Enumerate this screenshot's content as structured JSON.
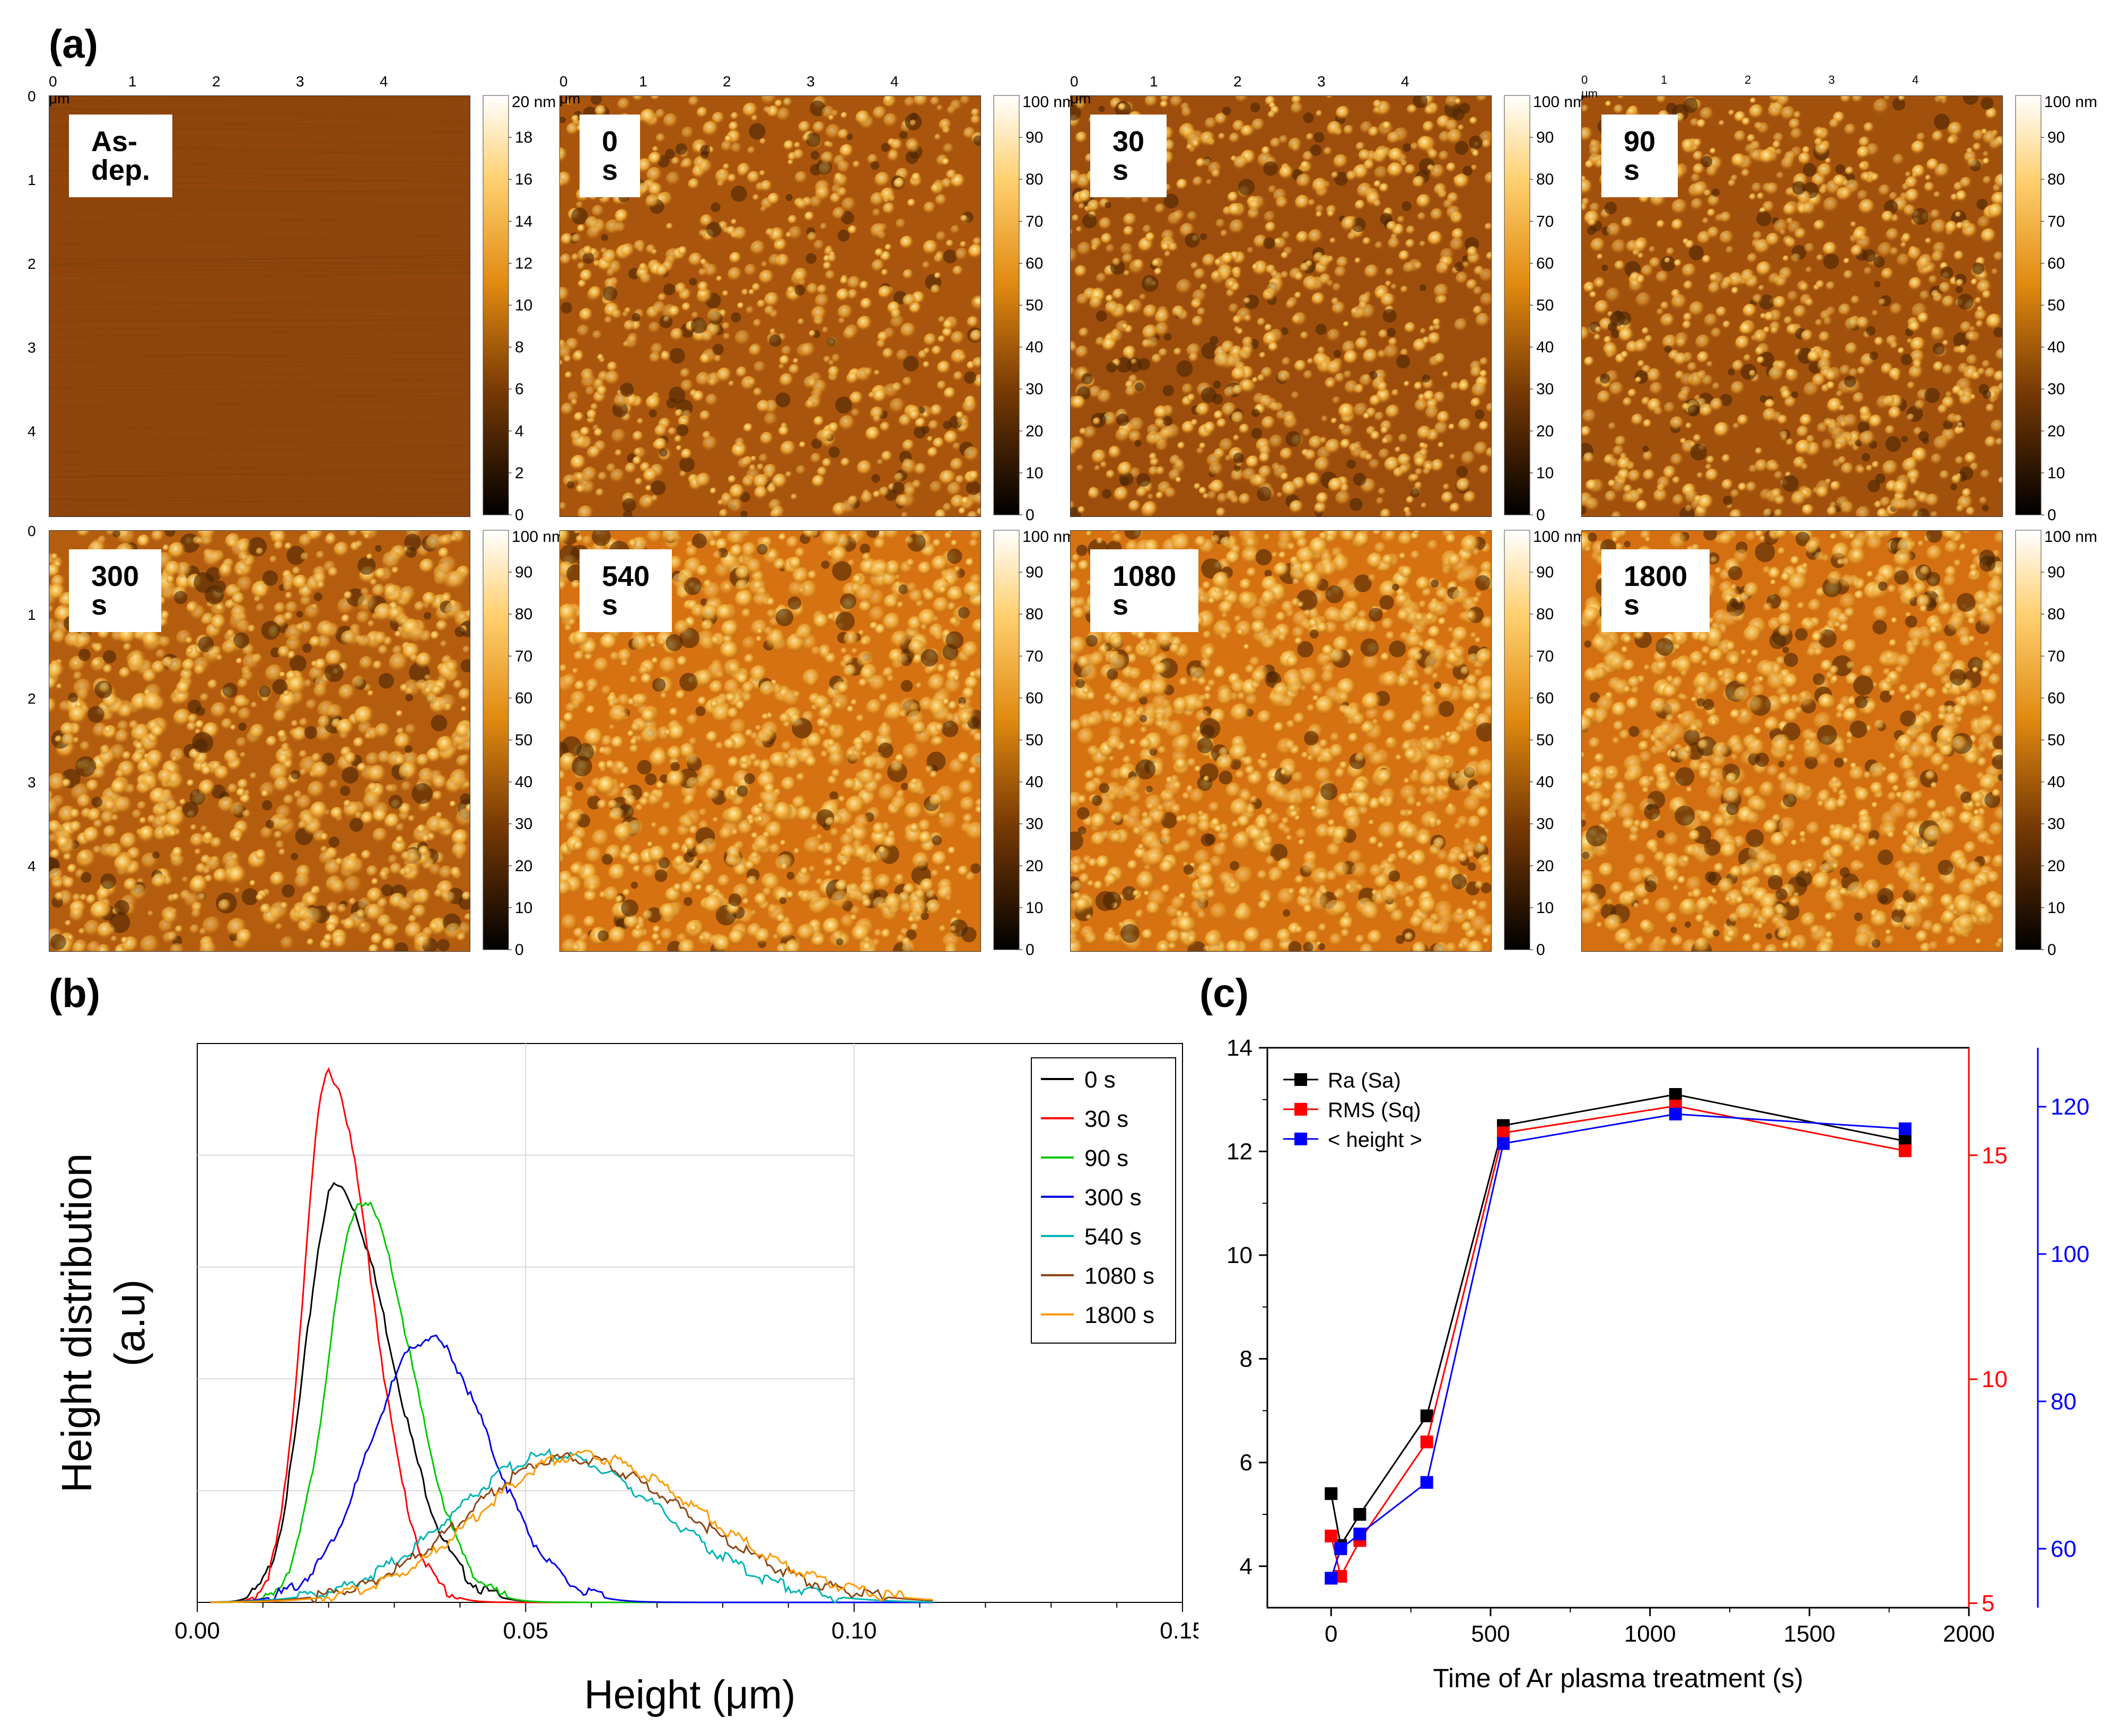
{
  "panel_labels": {
    "a": "(a)",
    "b": "(b)",
    "c": "(c)"
  },
  "afm": {
    "images": [
      {
        "label": "As-dep.",
        "scale_max_nm": 20,
        "scale_ticks": [
          0,
          2,
          4,
          6,
          8,
          10,
          12,
          14,
          16,
          18
        ],
        "unit": "20 nm",
        "brightness": 0.28,
        "grain": 0.05
      },
      {
        "label": "0 s",
        "scale_max_nm": 100,
        "scale_ticks": [
          0,
          10,
          20,
          30,
          40,
          50,
          60,
          70,
          80,
          90
        ],
        "unit": "100 nm",
        "brightness": 0.42,
        "grain": 0.5
      },
      {
        "label": "30 s",
        "scale_max_nm": 100,
        "scale_ticks": [
          0,
          10,
          20,
          30,
          40,
          50,
          60,
          70,
          80,
          90
        ],
        "unit": "100 nm",
        "brightness": 0.36,
        "grain": 0.55
      },
      {
        "label": "90 s",
        "scale_max_nm": 100,
        "scale_ticks": [
          0,
          10,
          20,
          30,
          40,
          50,
          60,
          70,
          80,
          90
        ],
        "unit": "100 nm",
        "brightness": 0.38,
        "grain": 0.6
      },
      {
        "label": "300 s",
        "scale_max_nm": 100,
        "scale_ticks": [
          0,
          10,
          20,
          30,
          40,
          50,
          60,
          70,
          80,
          90
        ],
        "unit": "100 nm",
        "brightness": 0.48,
        "grain": 0.8
      },
      {
        "label": "540 s",
        "scale_max_nm": 100,
        "scale_ticks": [
          0,
          10,
          20,
          30,
          40,
          50,
          60,
          70,
          80,
          90
        ],
        "unit": "100 nm",
        "brightness": 0.66,
        "grain": 0.9
      },
      {
        "label": "1080 s",
        "scale_max_nm": 100,
        "scale_ticks": [
          0,
          10,
          20,
          30,
          40,
          50,
          60,
          70,
          80,
          90
        ],
        "unit": "100 nm",
        "brightness": 0.66,
        "grain": 0.9
      },
      {
        "label": "1800 s",
        "scale_max_nm": 100,
        "scale_ticks": [
          0,
          10,
          20,
          30,
          40,
          50,
          60,
          70,
          80,
          90
        ],
        "unit": "100 nm",
        "brightness": 0.64,
        "grain": 0.9
      }
    ],
    "x_ticks": [
      "0 μm",
      "1",
      "2",
      "3",
      "4"
    ],
    "y_ticks": [
      "0",
      "1",
      "2",
      "3",
      "4"
    ]
  },
  "chart_data": [
    {
      "type": "line",
      "id": "b",
      "title": "",
      "xlabel": "Height (μm)",
      "ylabel": "Height distribution (a.u)",
      "xlim": [
        0,
        0.15
      ],
      "ylim": [
        0,
        1.1
      ],
      "x_ticks": [
        0.0,
        0.05,
        0.1,
        0.15
      ],
      "x_tick_labels": [
        "0.00",
        "0.05",
        "0.10",
        "0.15"
      ],
      "grid": true,
      "legend_position": "top-right",
      "series": [
        {
          "name": "0 s",
          "color": "#000000",
          "peak_x": 0.021,
          "peak_y": 0.82,
          "sigma_left": 0.0045,
          "sigma_right": 0.0085
        },
        {
          "name": "30 s",
          "color": "#ff0000",
          "peak_x": 0.02,
          "peak_y": 1.04,
          "sigma_left": 0.0038,
          "sigma_right": 0.0065
        },
        {
          "name": "90 s",
          "color": "#00c800",
          "peak_x": 0.025,
          "peak_y": 0.79,
          "sigma_left": 0.005,
          "sigma_right": 0.0075
        },
        {
          "name": "300 s",
          "color": "#0000e6",
          "peak_x": 0.035,
          "peak_y": 0.52,
          "sigma_left": 0.0085,
          "sigma_right": 0.0095
        },
        {
          "name": "540 s",
          "color": "#00b4b4",
          "peak_x": 0.054,
          "peak_y": 0.29,
          "sigma_left": 0.015,
          "sigma_right": 0.017
        },
        {
          "name": "1080 s",
          "color": "#8b4513",
          "peak_x": 0.056,
          "peak_y": 0.285,
          "sigma_left": 0.015,
          "sigma_right": 0.019
        },
        {
          "name": "1800 s",
          "color": "#ff9900",
          "peak_x": 0.058,
          "peak_y": 0.29,
          "sigma_left": 0.015,
          "sigma_right": 0.019
        }
      ]
    },
    {
      "type": "scatter",
      "id": "c",
      "title": "",
      "xlabel": "Time of Ar plasma treatment (s)",
      "ylabel": "",
      "xlim": [
        -200,
        2000
      ],
      "ylim": [
        3.2,
        14
      ],
      "x_ticks": [
        0,
        500,
        1000,
        1500,
        2000
      ],
      "y_ticks": [
        4,
        6,
        8,
        10,
        12,
        14
      ],
      "y2_ticks": [
        5,
        10,
        15
      ],
      "y2lim": [
        4.9,
        17.4
      ],
      "y3_ticks": [
        60,
        80,
        100,
        120
      ],
      "y3lim": [
        52,
        128
      ],
      "legend_position": "top-left",
      "series": [
        {
          "name": "Ra (Sa)",
          "color": "#000000",
          "axis": "left",
          "x": [
            0,
            30,
            90,
            300,
            540,
            1080,
            1800
          ],
          "y": [
            5.4,
            4.4,
            5.0,
            6.9,
            12.5,
            13.1,
            12.2
          ]
        },
        {
          "name": "RMS (Sq)",
          "color": "#ff0000",
          "axis": "right1",
          "x": [
            0,
            30,
            90,
            300,
            540,
            1080,
            1800
          ],
          "y": [
            6.5,
            5.6,
            6.4,
            8.6,
            15.5,
            16.1,
            15.1
          ]
        },
        {
          "name": "< height >",
          "color": "#0000ff",
          "axis": "right2",
          "x": [
            0,
            30,
            90,
            300,
            540,
            1080,
            1800
          ],
          "y": [
            56,
            60,
            62,
            69,
            115,
            119,
            117
          ]
        }
      ]
    }
  ]
}
